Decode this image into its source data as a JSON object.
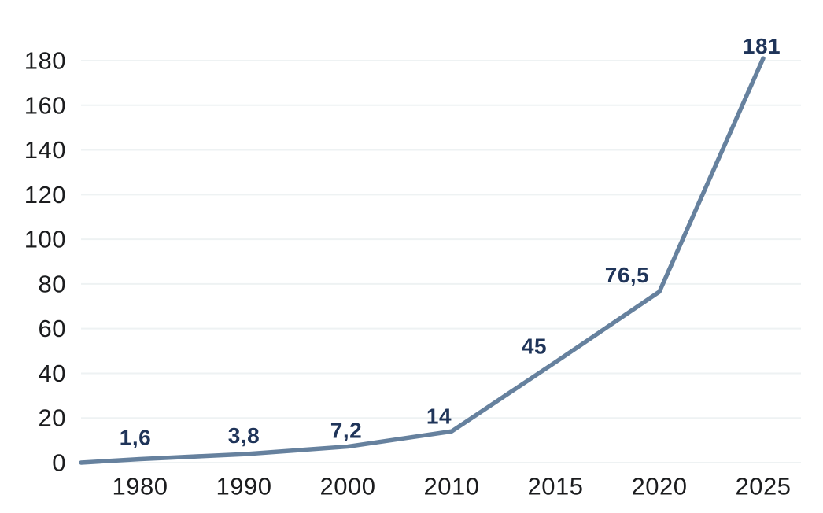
{
  "chart_data": {
    "type": "line",
    "title": "",
    "xlabel": "",
    "ylabel": "",
    "categories": [
      "1980",
      "1990",
      "2000",
      "2010",
      "2015",
      "2020",
      "2025"
    ],
    "series": [
      {
        "name": "value",
        "values": [
          1.6,
          3.8,
          7.2,
          14,
          45,
          76.5,
          181
        ]
      }
    ],
    "point_labels": [
      "1,6",
      "3,8",
      "7,2",
      "14",
      "45",
      "76,5",
      "181"
    ],
    "y_ticks": [
      0,
      20,
      40,
      60,
      80,
      100,
      120,
      140,
      160,
      180
    ],
    "x_tick_labels": [
      "1980",
      "1990",
      "2000",
      "2010",
      "2015",
      "2020",
      "2025"
    ],
    "ylim": [
      0,
      180
    ],
    "grid": "horizontal",
    "legend": "none",
    "decimal_separator": ",",
    "colors": {
      "line": "#66819E",
      "point_label": "#1F3459",
      "tick_label": "#1B1C1E",
      "gridline": "#EEF2F3",
      "background": "#FFFFFF"
    }
  }
}
